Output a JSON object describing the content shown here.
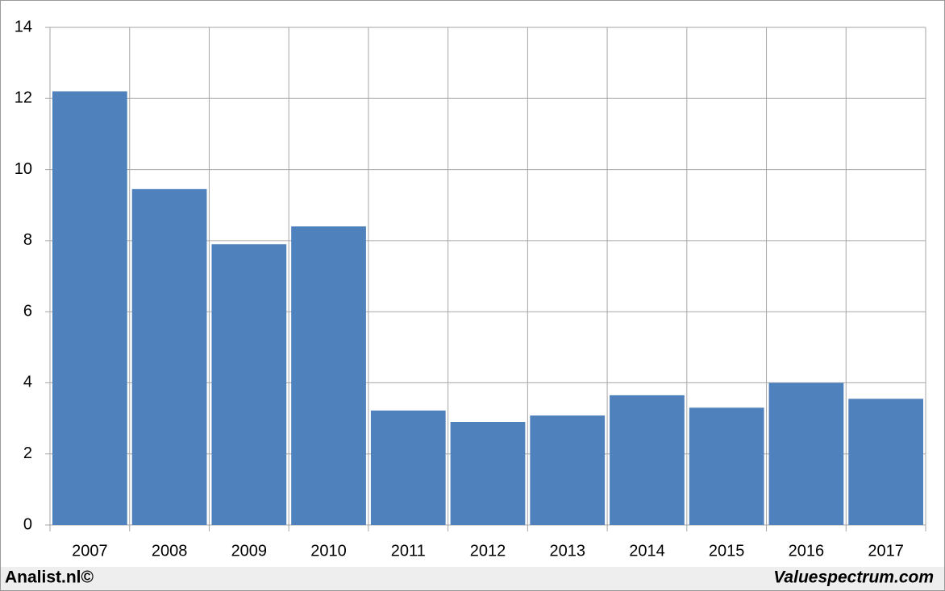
{
  "chart_data": {
    "type": "bar",
    "categories": [
      "2007",
      "2008",
      "2009",
      "2010",
      "2011",
      "2012",
      "2013",
      "2014",
      "2015",
      "2016",
      "2017"
    ],
    "values": [
      12.2,
      9.45,
      7.9,
      8.4,
      3.22,
      2.9,
      3.08,
      3.65,
      3.3,
      4.0,
      3.55
    ],
    "color": "#4f81bd",
    "ylim": [
      0,
      14
    ],
    "yticks": [
      0,
      2,
      4,
      6,
      8,
      10,
      12,
      14
    ],
    "grid": true
  },
  "footer": {
    "left": "Analist.nl©",
    "right": "Valuespectrum.com"
  }
}
